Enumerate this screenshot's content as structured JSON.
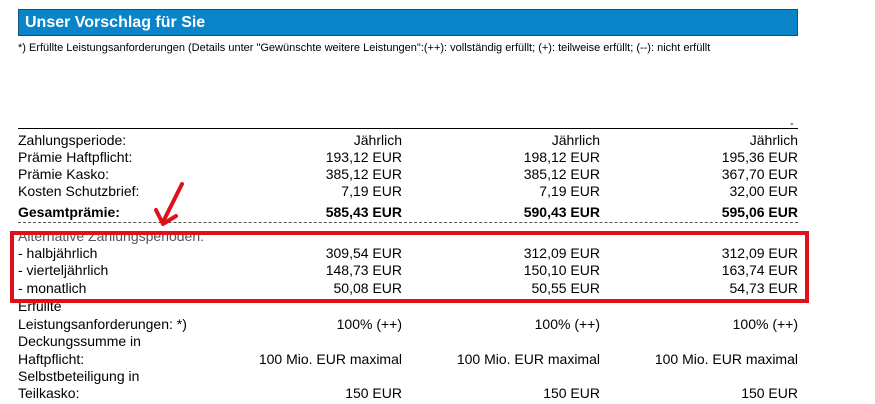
{
  "header": {
    "title": "Unser Vorschlag für Sie"
  },
  "legend": "*) Erfüllte Leistungsanforderungen (Details unter \"Gewünschte weitere Leistungen\":(++): vollständig erfüllt; (+): teilweise erfüllt; (--): nicht erfüllt",
  "tick": "-",
  "rows": [
    {
      "label": "Zahlungsperiode:",
      "v": [
        "Jährlich",
        "Jährlich",
        "Jährlich"
      ]
    },
    {
      "label": "Prämie Haftpflicht:",
      "v": [
        "193,12 EUR",
        "198,12 EUR",
        "195,36 EUR"
      ]
    },
    {
      "label": "Prämie Kasko:",
      "v": [
        "385,12 EUR",
        "385,12 EUR",
        "367,70 EUR"
      ]
    },
    {
      "label": "Kosten Schutzbrief:",
      "v": [
        "7,19 EUR",
        "7,19 EUR",
        "32,00 EUR"
      ]
    },
    {
      "label": "Gesamtprämie:",
      "v": [
        "585,43 EUR",
        "590,43 EUR",
        "595,06 EUR"
      ]
    },
    {
      "label": "Alternative Zahlungsperioden:"
    },
    {
      "label": "- halbjährlich",
      "v": [
        "309,54 EUR",
        "312,09 EUR",
        "312,09 EUR"
      ]
    },
    {
      "label": "- vierteljährlich",
      "v": [
        "148,73 EUR",
        "150,10 EUR",
        "163,74 EUR"
      ]
    },
    {
      "label": "- monatlich",
      "v": [
        "50,08 EUR",
        "50,55 EUR",
        "54,73 EUR"
      ]
    },
    {
      "label": "Erfüllte"
    },
    {
      "label": "Leistungsanforderungen: *)",
      "v": [
        "100% (++)",
        "100% (++)",
        "100% (++)"
      ]
    },
    {
      "label": "Deckungssumme in"
    },
    {
      "label": "Haftpflicht:",
      "v": [
        "100 Mio. EUR maximal",
        "100 Mio. EUR maximal",
        "100 Mio. EUR maximal"
      ]
    },
    {
      "label": "Selbstbeteiligung in"
    },
    {
      "label": "Teilkasko:",
      "v": [
        "150 EUR",
        "150 EUR",
        "150 EUR"
      ]
    }
  ],
  "colors": {
    "header_bg": "#0a84c8",
    "highlight": "#e0101a"
  }
}
